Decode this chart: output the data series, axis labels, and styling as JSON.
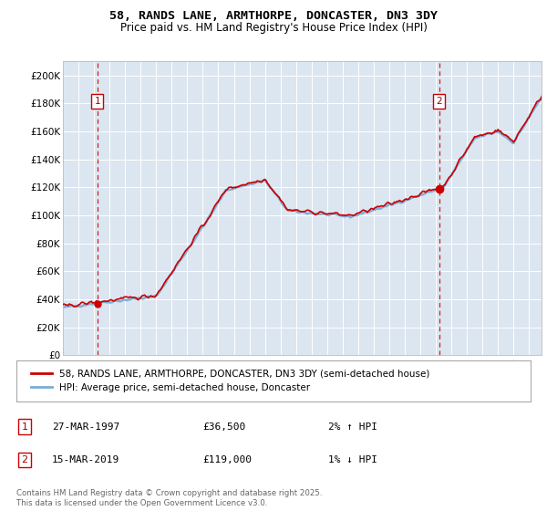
{
  "title": "58, RANDS LANE, ARMTHORPE, DONCASTER, DN3 3DY",
  "subtitle": "Price paid vs. HM Land Registry's House Price Index (HPI)",
  "background_color": "#dce6f1",
  "fig_bg_color": "#ffffff",
  "ylim": [
    0,
    210000
  ],
  "yticks": [
    0,
    20000,
    40000,
    60000,
    80000,
    100000,
    120000,
    140000,
    160000,
    180000,
    200000
  ],
  "ytick_labels": [
    "£0",
    "£20K",
    "£40K",
    "£60K",
    "£80K",
    "£100K",
    "£120K",
    "£140K",
    "£160K",
    "£180K",
    "£200K"
  ],
  "hpi_color": "#7aadd4",
  "price_color": "#cc0000",
  "marker_color": "#cc0000",
  "sale1_year": 1997.21,
  "sale1_price": 36500,
  "sale2_year": 2019.21,
  "sale2_price": 119000,
  "legend_label1": "58, RANDS LANE, ARMTHORPE, DONCASTER, DN3 3DY (semi-detached house)",
  "legend_label2": "HPI: Average price, semi-detached house, Doncaster",
  "note1_label": "1",
  "note1_date": "27-MAR-1997",
  "note1_price": "£36,500",
  "note1_hpi": "2% ↑ HPI",
  "note2_label": "2",
  "note2_date": "15-MAR-2019",
  "note2_price": "£119,000",
  "note2_hpi": "1% ↓ HPI",
  "footer": "Contains HM Land Registry data © Crown copyright and database right 2025.\nThis data is licensed under the Open Government Licence v3.0."
}
